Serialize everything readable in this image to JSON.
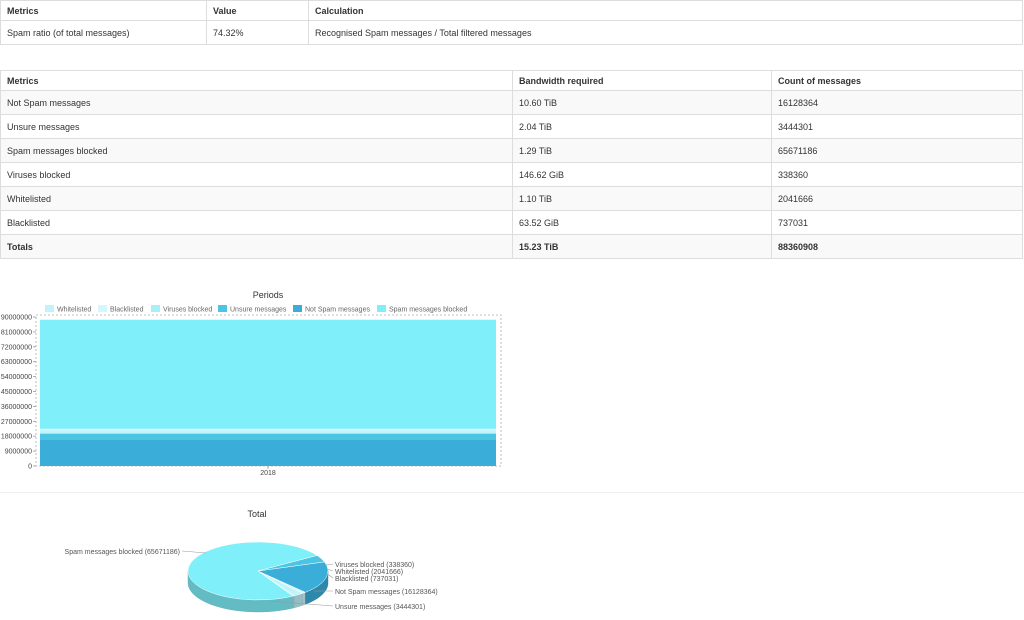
{
  "ratio_table": {
    "headers": [
      "Metrics",
      "Value",
      "Calculation"
    ],
    "rows": [
      [
        "Spam ratio (of total messages)",
        "74.32%",
        "Recognised Spam messages / Total filtered messages"
      ]
    ]
  },
  "metrics_table": {
    "headers": [
      "Metrics",
      "Bandwidth required",
      "Count of messages"
    ],
    "rows": [
      [
        "Not Spam messages",
        "10.60 TiB",
        "16128364"
      ],
      [
        "Unsure messages",
        "2.04 TiB",
        "3444301"
      ],
      [
        "Spam messages blocked",
        "1.29 TiB",
        "65671186"
      ],
      [
        "Viruses blocked",
        "146.62 GiB",
        "338360"
      ],
      [
        "Whitelisted",
        "1.10 TiB",
        "2041666"
      ],
      [
        "Blacklisted",
        "63.52 GiB",
        "737031"
      ]
    ],
    "totals": [
      "Totals",
      "15.23 TiB",
      "88360908"
    ]
  },
  "chart_data": [
    {
      "type": "bar",
      "stacked": true,
      "title": "Periods",
      "categories": [
        "2018"
      ],
      "series": [
        {
          "name": "Whitelisted",
          "values": [
            2041666
          ],
          "color": "#bff4fb"
        },
        {
          "name": "Blacklisted",
          "values": [
            737031
          ],
          "color": "#d2f7fc"
        },
        {
          "name": "Viruses blocked",
          "values": [
            338360
          ],
          "color": "#a8eff9"
        },
        {
          "name": "Unsure messages",
          "values": [
            3444301
          ],
          "color": "#4cc4e4"
        },
        {
          "name": "Not Spam messages",
          "values": [
            16128364
          ],
          "color": "#3aaed9"
        },
        {
          "name": "Spam messages blocked",
          "values": [
            65671186
          ],
          "color": "#7ff0fa"
        }
      ],
      "stack_order": [
        "Not Spam messages",
        "Unsure messages",
        "Whitelisted",
        "Blacklisted",
        "Viruses blocked",
        "Spam messages blocked"
      ],
      "ylim": [
        0,
        90000000
      ],
      "yticks": [
        0,
        9000000,
        18000000,
        27000000,
        36000000,
        45000000,
        54000000,
        63000000,
        72000000,
        81000000,
        90000000
      ],
      "legend": "top",
      "grid": false
    },
    {
      "type": "pie",
      "title": "Total",
      "slices": [
        {
          "name": "Spam messages blocked",
          "value": 65671186,
          "label": "Spam messages blocked (65671186)",
          "color": "#7ff0fa"
        },
        {
          "name": "Viruses blocked",
          "value": 338360,
          "label": "Viruses blocked (338360)",
          "color": "#a8eff9"
        },
        {
          "name": "Whitelisted",
          "value": 2041666,
          "label": "Whitelisted (2041666)",
          "color": "#bff4fb"
        },
        {
          "name": "Blacklisted",
          "value": 737031,
          "label": "Blacklisted (737031)",
          "color": "#d2f7fc"
        },
        {
          "name": "Not Spam messages",
          "value": 16128364,
          "label": "Not Spam messages (16128364)",
          "color": "#3aaed9"
        },
        {
          "name": "Unsure messages",
          "value": 3444301,
          "label": "Unsure messages (3444301)",
          "color": "#4cc4e4"
        }
      ]
    }
  ]
}
